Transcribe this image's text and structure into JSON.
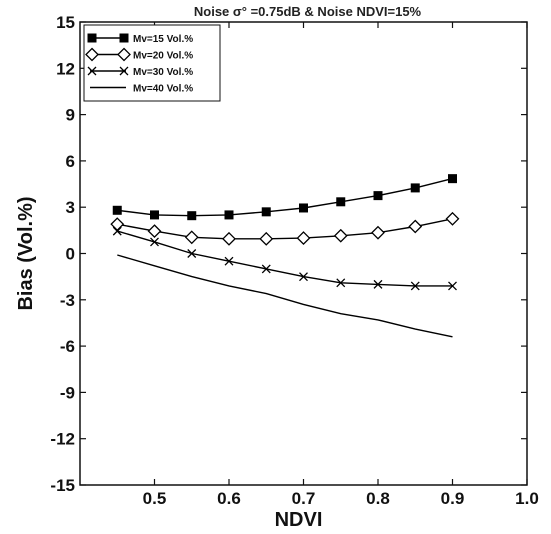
{
  "chart_data": {
    "type": "line",
    "title": "Noise σ° =0.75dB & Noise NDVI=15%",
    "xlabel": "NDVI",
    "ylabel": "Bias (Vol.%)",
    "xlim": [
      0.4,
      1.0
    ],
    "ylim": [
      -15,
      15
    ],
    "xticks": [
      0.5,
      0.6,
      0.7,
      0.8,
      0.9,
      1.0
    ],
    "xtick_labels": [
      "0.5",
      "0.6",
      "0.7",
      "0.8",
      "0.9",
      "1.0"
    ],
    "yticks": [
      15,
      12,
      9,
      6,
      3,
      0,
      -3,
      -6,
      -9,
      -12,
      -15
    ],
    "ytick_labels": [
      "15",
      "12",
      "9",
      "6",
      "3",
      "0",
      "-3",
      "-6",
      "-9",
      "-12",
      "-15"
    ],
    "grid": false,
    "legend_position": "top-left",
    "series": [
      {
        "name": "Mv=15 Vol.%",
        "marker": "filled-square",
        "x": [
          0.45,
          0.5,
          0.55,
          0.6,
          0.65,
          0.7,
          0.75,
          0.8,
          0.85,
          0.9
        ],
        "y": [
          2.8,
          2.5,
          2.45,
          2.5,
          2.7,
          2.95,
          3.35,
          3.75,
          4.25,
          4.85
        ]
      },
      {
        "name": "Mv=20 Vol.%",
        "marker": "open-diamond",
        "x": [
          0.45,
          0.5,
          0.55,
          0.6,
          0.65,
          0.7,
          0.75,
          0.8,
          0.85,
          0.9
        ],
        "y": [
          1.9,
          1.45,
          1.05,
          0.95,
          0.95,
          1.0,
          1.15,
          1.35,
          1.75,
          2.25
        ]
      },
      {
        "name": "Mv=30 Vol.%",
        "marker": "x",
        "x": [
          0.45,
          0.5,
          0.55,
          0.6,
          0.65,
          0.7,
          0.75,
          0.8,
          0.85,
          0.9
        ],
        "y": [
          1.45,
          0.75,
          0.0,
          -0.5,
          -1.0,
          -1.5,
          -1.9,
          -2.0,
          -2.1,
          -2.1
        ]
      },
      {
        "name": "Mv=40 Vol.%",
        "marker": "none",
        "x": [
          0.45,
          0.5,
          0.55,
          0.6,
          0.65,
          0.7,
          0.75,
          0.8,
          0.85,
          0.9
        ],
        "y": [
          -0.1,
          -0.8,
          -1.5,
          -2.1,
          -2.6,
          -3.3,
          -3.9,
          -4.3,
          -4.9,
          -5.4
        ]
      }
    ]
  }
}
